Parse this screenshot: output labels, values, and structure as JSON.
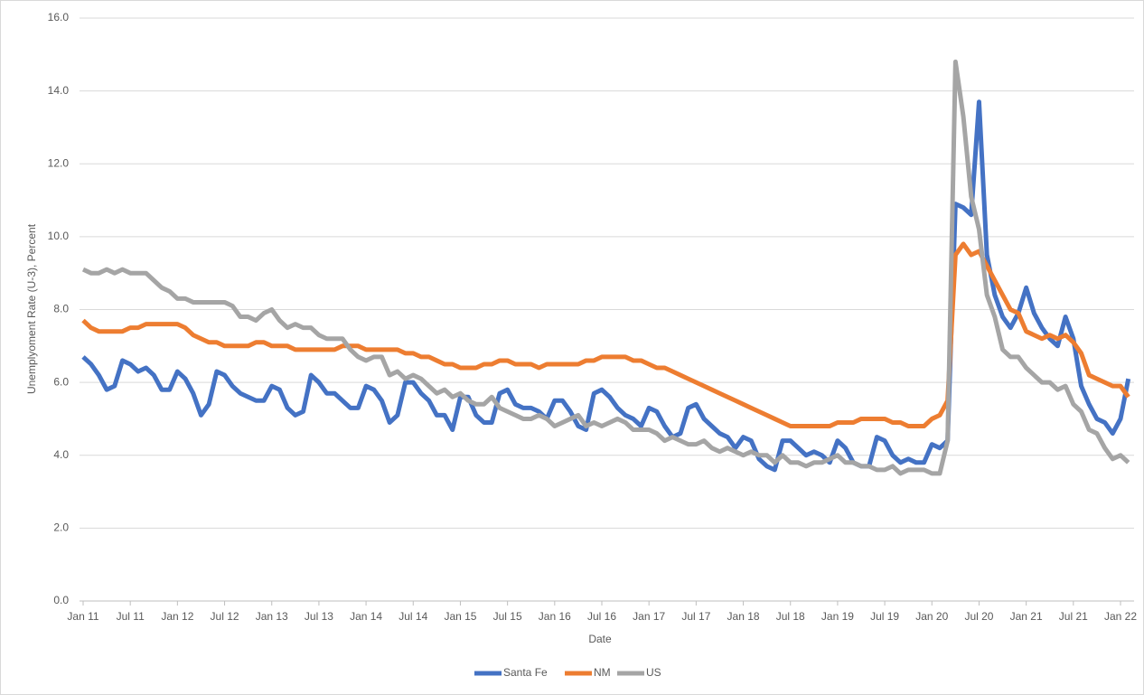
{
  "chart_data": {
    "type": "line",
    "y_label": "Unemplyoment Rate (U-3), Percent",
    "x_label": "Date",
    "categories": [
      "Jan 11",
      null,
      null,
      null,
      null,
      null,
      "Jul 11",
      null,
      null,
      null,
      null,
      null,
      "Jan 12",
      null,
      null,
      null,
      null,
      null,
      "Jul 12",
      null,
      null,
      null,
      null,
      null,
      "Jan 13",
      null,
      null,
      null,
      null,
      null,
      "Jul 13",
      null,
      null,
      null,
      null,
      null,
      "Jan 14",
      null,
      null,
      null,
      null,
      null,
      "Jul 14",
      null,
      null,
      null,
      null,
      null,
      "Jan 15",
      null,
      null,
      null,
      null,
      null,
      "Jul 15",
      null,
      null,
      null,
      null,
      null,
      "Jan 16",
      null,
      null,
      null,
      null,
      null,
      "Jul 16",
      null,
      null,
      null,
      null,
      null,
      "Jan 17",
      null,
      null,
      null,
      null,
      null,
      "Jul 17",
      null,
      null,
      null,
      null,
      null,
      "Jan 18",
      null,
      null,
      null,
      null,
      null,
      "Jul 18",
      null,
      null,
      null,
      null,
      null,
      "Jan 19",
      null,
      null,
      null,
      null,
      null,
      "Jul 19",
      null,
      null,
      null,
      null,
      null,
      "Jan 20",
      null,
      null,
      null,
      null,
      null,
      "Jul 20",
      null,
      null,
      null,
      null,
      null,
      "Jan 21",
      null,
      null,
      null,
      null,
      null,
      "Jul 21",
      null,
      null,
      null,
      null,
      null,
      "Jan 22",
      null
    ],
    "series": [
      {
        "name": "Santa Fe",
        "color": "#4472c4",
        "values": [
          6.7,
          6.5,
          6.2,
          5.8,
          5.9,
          6.6,
          6.5,
          6.3,
          6.4,
          6.2,
          5.8,
          5.8,
          6.3,
          6.1,
          5.7,
          5.1,
          5.4,
          6.3,
          6.2,
          5.9,
          5.7,
          5.6,
          5.5,
          5.5,
          5.9,
          5.8,
          5.3,
          5.1,
          5.2,
          6.2,
          6.0,
          5.7,
          5.7,
          5.5,
          5.3,
          5.3,
          5.9,
          5.8,
          5.5,
          4.9,
          5.1,
          6.0,
          6.0,
          5.7,
          5.5,
          5.1,
          5.1,
          4.7,
          5.6,
          5.6,
          5.1,
          4.9,
          4.9,
          5.7,
          5.8,
          5.4,
          5.3,
          5.3,
          5.2,
          5.0,
          5.5,
          5.5,
          5.2,
          4.8,
          4.7,
          5.7,
          5.8,
          5.6,
          5.3,
          5.1,
          5.0,
          4.8,
          5.3,
          5.2,
          4.8,
          4.5,
          4.6,
          5.3,
          5.4,
          5.0,
          4.8,
          4.6,
          4.5,
          4.2,
          4.5,
          4.4,
          3.9,
          3.7,
          3.6,
          4.4,
          4.4,
          4.2,
          4.0,
          4.1,
          4.0,
          3.8,
          4.4,
          4.2,
          3.8,
          3.7,
          3.7,
          4.5,
          4.4,
          4.0,
          3.8,
          3.9,
          3.8,
          3.8,
          4.3,
          4.2,
          4.4,
          10.9,
          10.8,
          10.6,
          13.7,
          9.5,
          8.4,
          7.8,
          7.5,
          7.9,
          8.6,
          7.9,
          7.5,
          7.2,
          7.0,
          7.8,
          7.2,
          5.9,
          5.4,
          5.0,
          4.9,
          4.6,
          5.0,
          6.1
        ]
      },
      {
        "name": "NM",
        "color": "#ed7d31",
        "values": [
          7.7,
          7.5,
          7.4,
          7.4,
          7.4,
          7.4,
          7.5,
          7.5,
          7.6,
          7.6,
          7.6,
          7.6,
          7.6,
          7.5,
          7.3,
          7.2,
          7.1,
          7.1,
          7.0,
          7.0,
          7.0,
          7.0,
          7.1,
          7.1,
          7.0,
          7.0,
          7.0,
          6.9,
          6.9,
          6.9,
          6.9,
          6.9,
          6.9,
          7.0,
          7.0,
          7.0,
          6.9,
          6.9,
          6.9,
          6.9,
          6.9,
          6.8,
          6.8,
          6.7,
          6.7,
          6.6,
          6.5,
          6.5,
          6.4,
          6.4,
          6.4,
          6.5,
          6.5,
          6.6,
          6.6,
          6.5,
          6.5,
          6.5,
          6.4,
          6.5,
          6.5,
          6.5,
          6.5,
          6.5,
          6.6,
          6.6,
          6.7,
          6.7,
          6.7,
          6.7,
          6.6,
          6.6,
          6.5,
          6.4,
          6.4,
          6.3,
          6.2,
          6.1,
          6.0,
          5.9,
          5.8,
          5.7,
          5.6,
          5.5,
          5.4,
          5.3,
          5.2,
          5.1,
          5.0,
          4.9,
          4.8,
          4.8,
          4.8,
          4.8,
          4.8,
          4.8,
          4.9,
          4.9,
          4.9,
          5.0,
          5.0,
          5.0,
          5.0,
          4.9,
          4.9,
          4.8,
          4.8,
          4.8,
          5.0,
          5.1,
          5.5,
          9.5,
          9.8,
          9.5,
          9.6,
          9.2,
          8.8,
          8.4,
          8.0,
          7.9,
          7.4,
          7.3,
          7.2,
          7.3,
          7.2,
          7.3,
          7.1,
          6.8,
          6.2,
          6.1,
          6.0,
          5.9,
          5.9,
          5.6
        ]
      },
      {
        "name": "US",
        "color": "#a5a5a5",
        "values": [
          9.1,
          9.0,
          9.0,
          9.1,
          9.0,
          9.1,
          9.0,
          9.0,
          9.0,
          8.8,
          8.6,
          8.5,
          8.3,
          8.3,
          8.2,
          8.2,
          8.2,
          8.2,
          8.2,
          8.1,
          7.8,
          7.8,
          7.7,
          7.9,
          8.0,
          7.7,
          7.5,
          7.6,
          7.5,
          7.5,
          7.3,
          7.2,
          7.2,
          7.2,
          6.9,
          6.7,
          6.6,
          6.7,
          6.7,
          6.2,
          6.3,
          6.1,
          6.2,
          6.1,
          5.9,
          5.7,
          5.8,
          5.6,
          5.7,
          5.5,
          5.4,
          5.4,
          5.6,
          5.3,
          5.2,
          5.1,
          5.0,
          5.0,
          5.1,
          5.0,
          4.8,
          4.9,
          5.0,
          5.1,
          4.8,
          4.9,
          4.8,
          4.9,
          5.0,
          4.9,
          4.7,
          4.7,
          4.7,
          4.6,
          4.4,
          4.5,
          4.4,
          4.3,
          4.3,
          4.4,
          4.2,
          4.1,
          4.2,
          4.1,
          4.0,
          4.1,
          4.0,
          4.0,
          3.8,
          4.0,
          3.8,
          3.8,
          3.7,
          3.8,
          3.8,
          3.9,
          4.0,
          3.8,
          3.8,
          3.7,
          3.7,
          3.6,
          3.6,
          3.7,
          3.5,
          3.6,
          3.6,
          3.6,
          3.5,
          3.5,
          4.4,
          14.8,
          13.3,
          11.1,
          10.2,
          8.4,
          7.8,
          6.9,
          6.7,
          6.7,
          6.4,
          6.2,
          6.0,
          6.0,
          5.8,
          5.9,
          5.4,
          5.2,
          4.7,
          4.6,
          4.2,
          3.9,
          4.0,
          3.8
        ]
      }
    ],
    "ylim": [
      0,
      16
    ],
    "yticks": [
      {
        "value": 0,
        "label": "0.0"
      },
      {
        "value": 2,
        "label": "2.0"
      },
      {
        "value": 4,
        "label": "4.0"
      },
      {
        "value": 6,
        "label": "6.0"
      },
      {
        "value": 8,
        "label": "8.0"
      },
      {
        "value": 10,
        "label": "10.0"
      },
      {
        "value": 12,
        "label": "12.0"
      },
      {
        "value": 14,
        "label": "14.0"
      },
      {
        "value": 16,
        "label": "16.0"
      }
    ],
    "grid": true,
    "legend": "bottom"
  }
}
